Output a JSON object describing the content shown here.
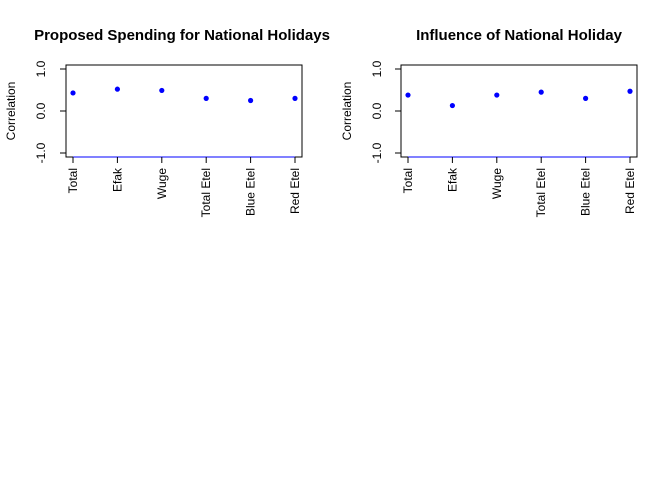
{
  "chart_data": [
    {
      "type": "scatter",
      "title": "Proposed Spending for National Holidays",
      "ylabel": "Correlation",
      "xlabel": "",
      "categories": [
        "Total",
        "Efak",
        "Wuge",
        "Total Etel",
        "Blue Etel",
        "Red Etel"
      ],
      "values": [
        0.43,
        0.52,
        0.49,
        0.3,
        0.25,
        0.3
      ],
      "ylim": [
        -1.0,
        1.0
      ],
      "yticks": [
        "-1.0",
        "0.0",
        "1.0"
      ],
      "grid": false,
      "point_color": "#0000ff",
      "baseline_color": "#0000ff"
    },
    {
      "type": "scatter",
      "title": "Influence of National Holiday",
      "ylabel": "Correlation",
      "xlabel": "",
      "categories": [
        "Total",
        "Efak",
        "Wuge",
        "Total Etel",
        "Blue Etel",
        "Red Etel"
      ],
      "values": [
        0.38,
        0.13,
        0.38,
        0.45,
        0.3,
        0.47
      ],
      "ylim": [
        -1.0,
        1.0
      ],
      "yticks": [
        "-1.0",
        "0.0",
        "1.0"
      ],
      "grid": false,
      "point_color": "#0000ff",
      "baseline_color": "#0000ff"
    }
  ]
}
